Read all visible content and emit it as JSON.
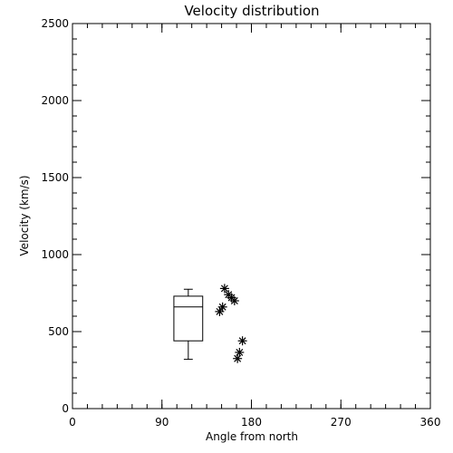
{
  "chart_data": {
    "type": "scatter",
    "title": "Velocity distribution",
    "xlabel": "Angle from north",
    "ylabel": "Velocity (km/s)",
    "xlim": [
      0,
      360
    ],
    "ylim": [
      0,
      2500
    ],
    "xticks": [
      0,
      90,
      180,
      270,
      360
    ],
    "yticks": [
      0,
      500,
      1000,
      1500,
      2000,
      2500
    ],
    "x_minor_step": 15,
    "y_minor_step": 100,
    "grid": false,
    "colors": {
      "axes": "#000000",
      "marks": "#000000",
      "background": "#ffffff"
    },
    "boxplot": {
      "x_range": [
        102,
        131
      ],
      "whisker_low": 320,
      "q1": 440,
      "median": 660,
      "q3": 730,
      "whisker_high": 775,
      "cap_x_range": [
        112,
        121
      ]
    },
    "points": [
      {
        "x": 153,
        "y": 780
      },
      {
        "x": 157,
        "y": 740
      },
      {
        "x": 160,
        "y": 720
      },
      {
        "x": 163,
        "y": 700
      },
      {
        "x": 151,
        "y": 660
      },
      {
        "x": 148,
        "y": 630
      },
      {
        "x": 171,
        "y": 440
      },
      {
        "x": 168,
        "y": 365
      },
      {
        "x": 166,
        "y": 325
      }
    ],
    "marker": "asterisk"
  }
}
